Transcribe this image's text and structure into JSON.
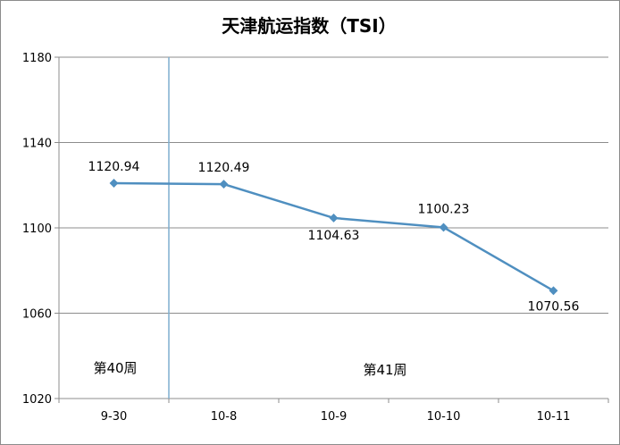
{
  "chart_data": {
    "type": "line",
    "title": "天津航运指数（TSI）",
    "categories": [
      "9-30",
      "10-8",
      "10-9",
      "10-10",
      "10-11"
    ],
    "series": [
      {
        "values": [
          1120.94,
          1120.49,
          1104.63,
          1100.23,
          1070.56
        ],
        "color": "#4f8fc0"
      }
    ],
    "data_labels": [
      "1120.94",
      "1120.49",
      "1104.63",
      "1100.23",
      "1070.56"
    ],
    "ylim": [
      1020,
      1180
    ],
    "yticks": [
      "1020",
      "1060",
      "1100",
      "1140",
      "1180"
    ],
    "grid": true,
    "xlabel": "",
    "ylabel": "",
    "separator_line": {
      "between": [
        "9-30",
        "10-8"
      ],
      "color": "#7faecf"
    },
    "annotations": [
      {
        "text": "第40周",
        "week": 40
      },
      {
        "text": "第41周",
        "week": 41
      }
    ]
  }
}
